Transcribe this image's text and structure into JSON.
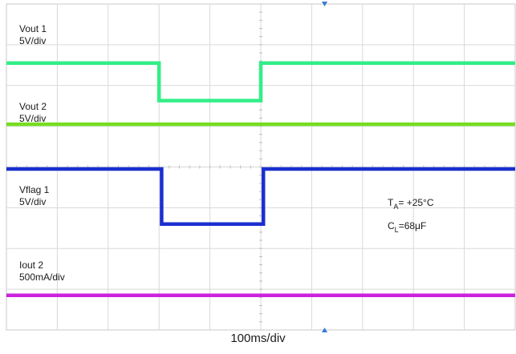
{
  "chart_data": {
    "type": "line",
    "title": "",
    "xlabel": "100ms/div",
    "x_divisions": 10,
    "y_divisions": 8,
    "grid": true,
    "channels": [
      {
        "name": "Vout 1",
        "scale": "5V/div",
        "color": "#33ee88",
        "points": [
          [
            0,
            6.55
          ],
          [
            3.0,
            6.55
          ],
          [
            3.0,
            5.63
          ],
          [
            5.0,
            5.63
          ],
          [
            5.0,
            6.55
          ],
          [
            10,
            6.55
          ]
        ]
      },
      {
        "name": "Vout 2",
        "scale": "5V/div",
        "color": "#77dd22",
        "points": [
          [
            0,
            5.05
          ],
          [
            10,
            5.05
          ]
        ]
      },
      {
        "name": "Vflag 1",
        "scale": "5V/div",
        "color": "#1a2fd0",
        "points": [
          [
            0,
            3.95
          ],
          [
            3.05,
            3.95
          ],
          [
            3.05,
            2.6
          ],
          [
            5.05,
            2.6
          ],
          [
            5.05,
            3.95
          ],
          [
            10,
            3.95
          ]
        ]
      },
      {
        "name": "Iout 2",
        "scale": "500mA/div",
        "color": "#cc22dd",
        "points": [
          [
            0,
            0.85
          ],
          [
            10,
            0.85
          ]
        ]
      }
    ],
    "annotations": {
      "ta_main": "T",
      "ta_sub": "A",
      "ta_rest": "= +25°C",
      "cl_main": "C",
      "cl_sub": "L",
      "cl_rest": "=68μF"
    }
  }
}
